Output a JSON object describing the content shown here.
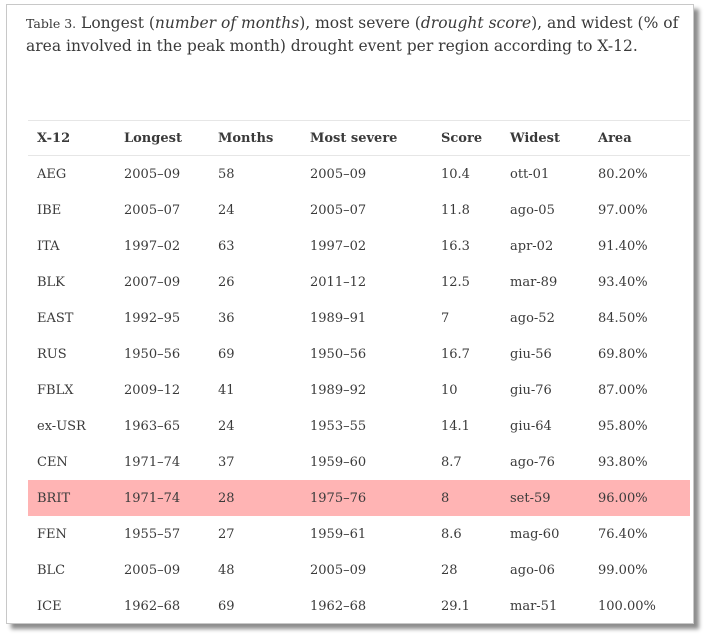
{
  "caption": {
    "label": "Table 3.",
    "seg1": " Longest (",
    "em1": "number of months",
    "seg2": "), most severe (",
    "em2": "drought score",
    "seg3": "), and widest (% of area involved in the peak month) drought event per region according to X-12."
  },
  "table": {
    "headers": [
      "X-12",
      "Longest",
      "Months",
      "Most severe",
      "Score",
      "Widest",
      "Area"
    ],
    "rows": [
      [
        "AEG",
        "2005–09",
        "58",
        "2005–09",
        "10.4",
        "ott-01",
        "80.20%"
      ],
      [
        "IBE",
        "2005–07",
        "24",
        "2005–07",
        "11.8",
        "ago-05",
        "97.00%"
      ],
      [
        "ITA",
        "1997–02",
        "63",
        "1997–02",
        "16.3",
        "apr-02",
        "91.40%"
      ],
      [
        "BLK",
        "2007–09",
        "26",
        "2011–12",
        "12.5",
        "mar-89",
        "93.40%"
      ],
      [
        "EAST",
        "1992–95",
        "36",
        "1989–91",
        "7",
        "ago-52",
        "84.50%"
      ],
      [
        "RUS",
        "1950–56",
        "69",
        "1950–56",
        "16.7",
        "giu-56",
        "69.80%"
      ],
      [
        "FBLX",
        "2009–12",
        "41",
        "1989–92",
        "10",
        "giu-76",
        "87.00%"
      ],
      [
        "ex-USR",
        "1963–65",
        "24",
        "1953–55",
        "14.1",
        "giu-64",
        "95.80%"
      ],
      [
        "CEN",
        "1971–74",
        "37",
        "1959–60",
        "8.7",
        "ago-76",
        "93.80%"
      ],
      [
        "BRIT",
        "1971–74",
        "28",
        "1975–76",
        "8",
        "set-59",
        "96.00%"
      ],
      [
        "FEN",
        "1955–57",
        "27",
        "1959–61",
        "8.6",
        "mag-60",
        "76.40%"
      ],
      [
        "BLC",
        "2005–09",
        "48",
        "2005–09",
        "28",
        "ago-06",
        "99.00%"
      ],
      [
        "ICE",
        "1962–68",
        "69",
        "1962–68",
        "29.1",
        "mar-51",
        "100.00%"
      ]
    ],
    "highlighted_row": "BRIT",
    "highlight_color": "#ffb4b4"
  }
}
